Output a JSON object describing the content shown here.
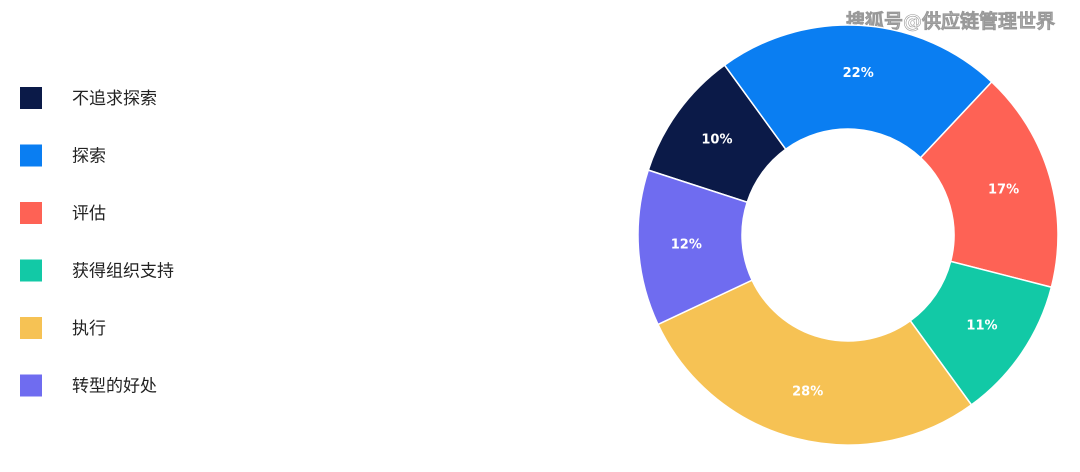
{
  "chart_data": {
    "type": "donut",
    "watermark": "搜狐号@供应链管理世界",
    "categories": [
      "不追求探索",
      "探索",
      "评估",
      "获得组织支持",
      "执行",
      "转型的好处"
    ],
    "values": [
      10,
      22,
      17,
      11,
      28,
      12
    ],
    "value_labels": [
      "10%",
      "22%",
      "17%",
      "11%",
      "28%",
      "12%"
    ],
    "colors": [
      "#0b1a48",
      "#0a7ef2",
      "#fe6255",
      "#12c9a6",
      "#f6c254",
      "#6f6cf0"
    ]
  }
}
